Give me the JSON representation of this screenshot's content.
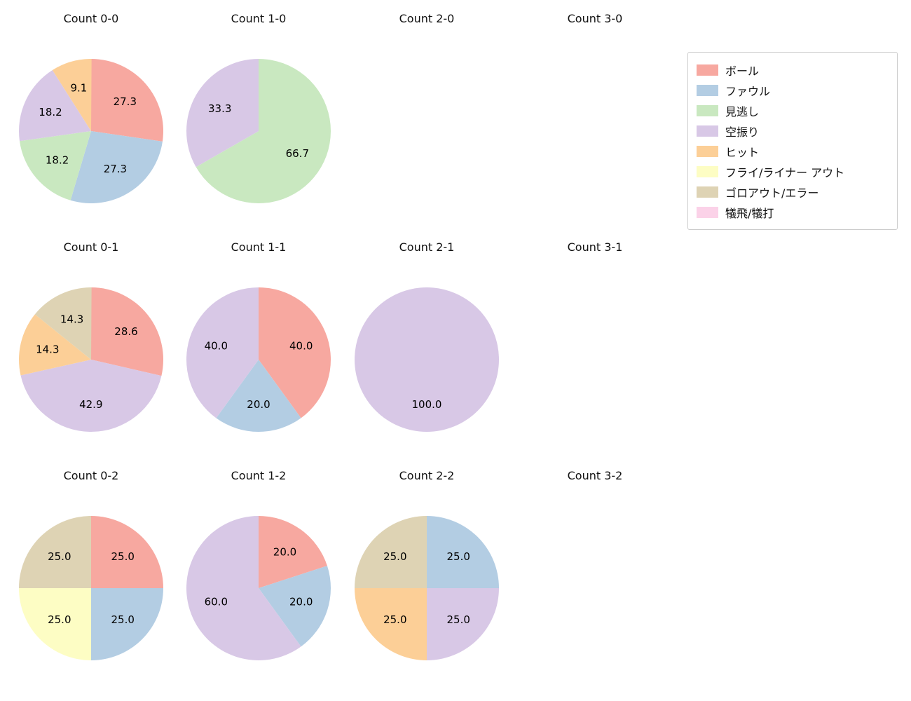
{
  "palette": {
    "ball": "#f7a8a0",
    "foul": "#b3cde3",
    "called_strike": "#c9e8c0",
    "swinging_strike": "#d8c8e6",
    "hit": "#fccf97",
    "fly_liner_out": "#fdfdc4",
    "ground_out_error": "#ded3b4",
    "sac_fly_bunt": "#fbd2e8"
  },
  "legend": {
    "items": [
      {
        "key": "ball",
        "label": "ボール"
      },
      {
        "key": "foul",
        "label": "ファウル"
      },
      {
        "key": "called_strike",
        "label": "見逃し"
      },
      {
        "key": "swinging_strike",
        "label": "空振り"
      },
      {
        "key": "hit",
        "label": "ヒット"
      },
      {
        "key": "fly_liner_out",
        "label": "フライ/ライナー アウト"
      },
      {
        "key": "ground_out_error",
        "label": "ゴロアウト/エラー"
      },
      {
        "key": "sac_fly_bunt",
        "label": "犠飛/犠打"
      }
    ]
  },
  "chart_data": [
    {
      "type": "pie",
      "title": "Count 0-0",
      "start_angle": 90,
      "direction": "clockwise",
      "slices": [
        {
          "key": "ball",
          "label": "ボール",
          "value": 27.3
        },
        {
          "key": "foul",
          "label": "ファウル",
          "value": 27.3
        },
        {
          "key": "called_strike",
          "label": "見逃し",
          "value": 18.2
        },
        {
          "key": "swinging_strike",
          "label": "空振り",
          "value": 18.2
        },
        {
          "key": "hit",
          "label": "ヒット",
          "value": 9.1
        }
      ]
    },
    {
      "type": "pie",
      "title": "Count 1-0",
      "start_angle": 90,
      "direction": "clockwise",
      "slices": [
        {
          "key": "called_strike",
          "label": "見逃し",
          "value": 66.7
        },
        {
          "key": "swinging_strike",
          "label": "空振り",
          "value": 33.3
        }
      ]
    },
    {
      "type": "pie",
      "title": "Count 2-0",
      "start_angle": 90,
      "direction": "clockwise",
      "slices": []
    },
    {
      "type": "pie",
      "title": "Count 3-0",
      "start_angle": 90,
      "direction": "clockwise",
      "slices": []
    },
    {
      "type": "pie",
      "title": "Count 0-1",
      "start_angle": 90,
      "direction": "clockwise",
      "slices": [
        {
          "key": "ball",
          "label": "ボール",
          "value": 28.6
        },
        {
          "key": "swinging_strike",
          "label": "空振り",
          "value": 42.9
        },
        {
          "key": "hit",
          "label": "ヒット",
          "value": 14.3
        },
        {
          "key": "ground_out_error",
          "label": "ゴロアウト/エラー",
          "value": 14.3
        }
      ]
    },
    {
      "type": "pie",
      "title": "Count 1-1",
      "start_angle": 90,
      "direction": "clockwise",
      "slices": [
        {
          "key": "ball",
          "label": "ボール",
          "value": 40.0
        },
        {
          "key": "foul",
          "label": "ファウル",
          "value": 20.0
        },
        {
          "key": "swinging_strike",
          "label": "空振り",
          "value": 40.0
        }
      ]
    },
    {
      "type": "pie",
      "title": "Count 2-1",
      "start_angle": 90,
      "direction": "clockwise",
      "slices": [
        {
          "key": "swinging_strike",
          "label": "空振り",
          "value": 100.0
        }
      ]
    },
    {
      "type": "pie",
      "title": "Count 3-1",
      "start_angle": 90,
      "direction": "clockwise",
      "slices": []
    },
    {
      "type": "pie",
      "title": "Count 0-2",
      "start_angle": 90,
      "direction": "clockwise",
      "slices": [
        {
          "key": "ball",
          "label": "ボール",
          "value": 25.0
        },
        {
          "key": "foul",
          "label": "ファウル",
          "value": 25.0
        },
        {
          "key": "fly_liner_out",
          "label": "フライ/ライナー アウト",
          "value": 25.0
        },
        {
          "key": "ground_out_error",
          "label": "ゴロアウト/エラー",
          "value": 25.0
        }
      ]
    },
    {
      "type": "pie",
      "title": "Count 1-2",
      "start_angle": 90,
      "direction": "clockwise",
      "slices": [
        {
          "key": "ball",
          "label": "ボール",
          "value": 20.0
        },
        {
          "key": "foul",
          "label": "ファウル",
          "value": 20.0
        },
        {
          "key": "swinging_strike",
          "label": "空振り",
          "value": 60.0
        }
      ]
    },
    {
      "type": "pie",
      "title": "Count 2-2",
      "start_angle": 90,
      "direction": "clockwise",
      "slices": [
        {
          "key": "foul",
          "label": "ファウル",
          "value": 25.0
        },
        {
          "key": "swinging_strike",
          "label": "空振り",
          "value": 25.0
        },
        {
          "key": "hit",
          "label": "ヒット",
          "value": 25.0
        },
        {
          "key": "ground_out_error",
          "label": "ゴロアウト/エラー",
          "value": 25.0
        }
      ]
    },
    {
      "type": "pie",
      "title": "Count 3-2",
      "start_angle": 90,
      "direction": "clockwise",
      "slices": []
    }
  ]
}
